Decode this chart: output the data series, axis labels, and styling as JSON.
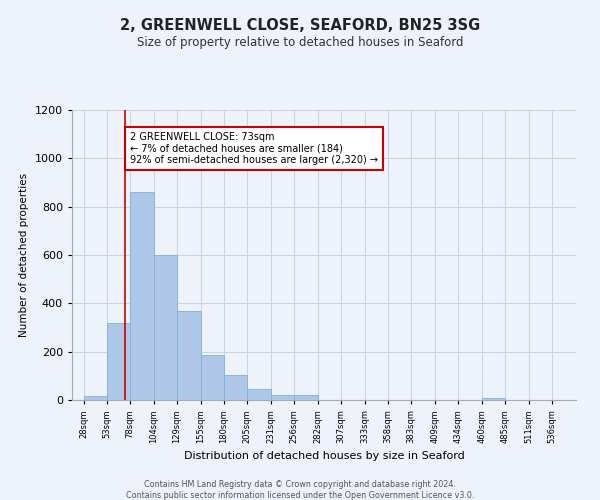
{
  "title": "2, GREENWELL CLOSE, SEAFORD, BN25 3SG",
  "subtitle": "Size of property relative to detached houses in Seaford",
  "xlabel": "Distribution of detached houses by size in Seaford",
  "ylabel": "Number of detached properties",
  "bar_left_edges": [
    28,
    53,
    78,
    104,
    129,
    155,
    180,
    205,
    231,
    256,
    282,
    307,
    333,
    358,
    383,
    409,
    434,
    460,
    485,
    511
  ],
  "bar_widths": [
    25,
    25,
    26,
    25,
    26,
    25,
    25,
    26,
    25,
    26,
    25,
    26,
    25,
    25,
    26,
    25,
    26,
    25,
    26,
    25
  ],
  "bar_heights": [
    15,
    320,
    860,
    600,
    370,
    185,
    105,
    45,
    20,
    20,
    0,
    0,
    0,
    0,
    0,
    0,
    0,
    10,
    0,
    0
  ],
  "bar_color": "#aec6e8",
  "bar_edge_color": "#7fb3d9",
  "tick_labels": [
    "28sqm",
    "53sqm",
    "78sqm",
    "104sqm",
    "129sqm",
    "155sqm",
    "180sqm",
    "205sqm",
    "231sqm",
    "256sqm",
    "282sqm",
    "307sqm",
    "333sqm",
    "358sqm",
    "383sqm",
    "409sqm",
    "434sqm",
    "460sqm",
    "485sqm",
    "511sqm",
    "536sqm"
  ],
  "ylim": [
    0,
    1200
  ],
  "yticks": [
    0,
    200,
    400,
    600,
    800,
    1000,
    1200
  ],
  "xlim_left": 15,
  "xlim_right": 562,
  "marker_x": 73,
  "marker_color": "#cc0000",
  "annotation_title": "2 GREENWELL CLOSE: 73sqm",
  "annotation_line1": "← 7% of detached houses are smaller (184)",
  "annotation_line2": "92% of semi-detached houses are larger (2,320) →",
  "annotation_box_color": "#ffffff",
  "annotation_border_color": "#cc0000",
  "footer_line1": "Contains HM Land Registry data © Crown copyright and database right 2024.",
  "footer_line2": "Contains public sector information licensed under the Open Government Licence v3.0.",
  "grid_color": "#c8d4e8",
  "background_color": "#eef2fa"
}
